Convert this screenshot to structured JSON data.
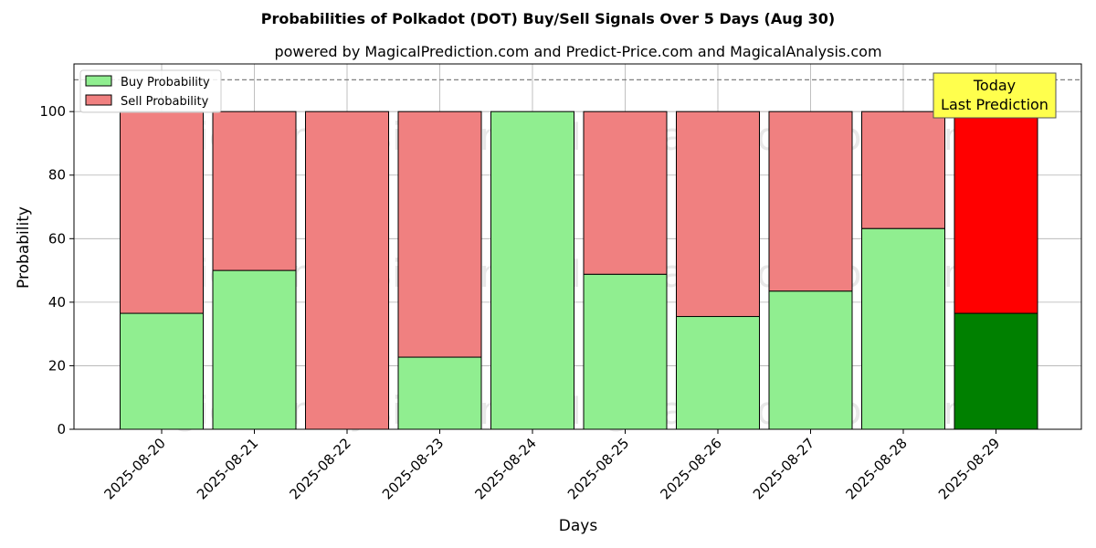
{
  "chart_data": {
    "type": "bar",
    "stacked": true,
    "title": "Probabilities of Polkadot (DOT) Buy/Sell Signals Over 5 Days (Aug 30)",
    "subtitle": "powered by MagicalPrediction.com and Predict-Price.com and MagicalAnalysis.com",
    "xlabel": "Days",
    "ylabel": "Probability",
    "ylim": [
      0,
      115
    ],
    "yticks": [
      0,
      20,
      40,
      60,
      80,
      100
    ],
    "grid": true,
    "legend_position": "top-left",
    "reference_line": 110,
    "categories": [
      "2025-08-20",
      "2025-08-21",
      "2025-08-22",
      "2025-08-23",
      "2025-08-24",
      "2025-08-25",
      "2025-08-26",
      "2025-08-27",
      "2025-08-28",
      "2025-08-29"
    ],
    "series": [
      {
        "name": "Buy Probability",
        "values": [
          36.5,
          50,
          0,
          22.7,
          100,
          48.8,
          35.5,
          43.5,
          63.2,
          36.5
        ],
        "color": "#90ee90",
        "highlight_color": "#008000"
      },
      {
        "name": "Sell Probability",
        "values": [
          63.5,
          50,
          100,
          77.3,
          0,
          51.2,
          64.5,
          56.5,
          36.8,
          63.5
        ],
        "color": "#f08080",
        "highlight_color": "#ff0000"
      }
    ],
    "highlight_index": 9,
    "annotation": {
      "lines": [
        "Today",
        "Last Prediction"
      ],
      "background": "#ffff4d"
    },
    "watermarks": [
      "MagicalAnalysis.com",
      "MagicalPrediction.com"
    ]
  }
}
